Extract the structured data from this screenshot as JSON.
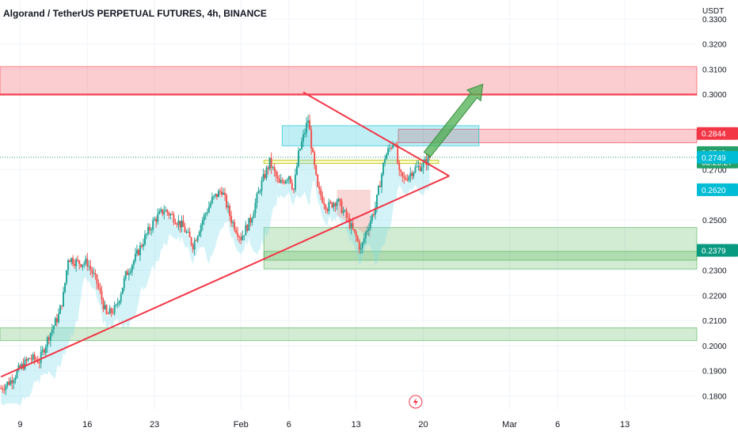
{
  "header": {
    "title": "Algorand / TetherUS PERPETUAL FUTURES, 4h, BINANCE"
  },
  "y_axis": {
    "currency": "USDT",
    "ticks": [
      "0.3300",
      "0.3200",
      "0.3100",
      "0.3000",
      "0.2700",
      "0.2500",
      "0.2300",
      "0.2200",
      "0.2100",
      "0.2000",
      "0.1900",
      "0.1800"
    ],
    "tick_values": [
      0.33,
      0.32,
      0.31,
      0.3,
      0.27,
      0.25,
      0.23,
      0.22,
      0.21,
      0.2,
      0.19,
      0.18
    ]
  },
  "x_axis": {
    "ticks": [
      "9",
      "16",
      "23",
      "Feb",
      "6",
      "13",
      "20",
      "Mar",
      "6",
      "13"
    ],
    "tick_days": [
      9,
      16,
      23,
      32,
      37,
      44,
      51,
      60,
      65,
      72
    ]
  },
  "price_labels": [
    {
      "text": "0.2844",
      "value": 0.2844,
      "color": "#f23645"
    },
    {
      "text": "0.2749",
      "value": 0.2749,
      "color": "#26a069",
      "sub": "03:25:27"
    },
    {
      "text": "0.2749",
      "value": 0.2749,
      "color": "#00bcd4"
    },
    {
      "text": "0.2620",
      "value": 0.262,
      "color": "#00bcd4"
    },
    {
      "text": "0.2379",
      "value": 0.2379,
      "color": "#089981"
    }
  ],
  "chart_data": {
    "type": "candlestick",
    "symbol": "Algorand / TetherUS PERPETUAL FUTURES",
    "timeframe": "4h",
    "exchange": "BINANCE",
    "ylim": [
      0.1745,
      0.3375
    ],
    "x_range_days": [
      6.9,
      79.5
    ],
    "last_price": 0.2749,
    "countdown": "03:25:27",
    "close_path": [
      [
        7,
        0.183
      ],
      [
        8,
        0.186
      ],
      [
        9,
        0.191
      ],
      [
        10,
        0.195
      ],
      [
        11,
        0.194
      ],
      [
        12,
        0.204
      ],
      [
        13,
        0.212
      ],
      [
        13.5,
        0.22
      ],
      [
        14,
        0.235
      ],
      [
        15,
        0.233
      ],
      [
        16,
        0.233
      ],
      [
        17,
        0.225
      ],
      [
        18,
        0.212
      ],
      [
        19,
        0.215
      ],
      [
        20,
        0.228
      ],
      [
        21,
        0.235
      ],
      [
        22,
        0.243
      ],
      [
        23,
        0.25
      ],
      [
        24,
        0.254
      ],
      [
        25,
        0.251
      ],
      [
        26,
        0.247
      ],
      [
        27,
        0.24
      ],
      [
        28,
        0.25
      ],
      [
        29,
        0.258
      ],
      [
        30,
        0.262
      ],
      [
        31,
        0.25
      ],
      [
        32,
        0.243
      ],
      [
        33,
        0.25
      ],
      [
        34,
        0.263
      ],
      [
        35,
        0.273
      ],
      [
        36,
        0.264
      ],
      [
        37,
        0.268
      ],
      [
        37.5,
        0.262
      ],
      [
        38,
        0.276
      ],
      [
        39,
        0.29
      ],
      [
        39.5,
        0.275
      ],
      [
        40,
        0.262
      ],
      [
        41,
        0.255
      ],
      [
        42,
        0.258
      ],
      [
        43,
        0.251
      ],
      [
        44,
        0.243
      ],
      [
        44.5,
        0.238
      ],
      [
        45,
        0.245
      ],
      [
        46,
        0.255
      ],
      [
        47,
        0.275
      ],
      [
        48,
        0.282
      ],
      [
        48.5,
        0.268
      ],
      [
        49,
        0.266
      ],
      [
        50,
        0.27
      ],
      [
        51,
        0.272
      ],
      [
        51.7,
        0.2749
      ]
    ],
    "trendlines": [
      {
        "name": "upper",
        "points": [
          [
            38.5,
            0.3008
          ],
          [
            53.7,
            0.2675
          ]
        ],
        "color": "#f23645"
      },
      {
        "name": "lower",
        "points": [
          [
            7,
            0.1876
          ],
          [
            53.7,
            0.2675
          ]
        ],
        "color": "#f23645"
      }
    ],
    "zones": [
      {
        "label": "resistance",
        "x": [
          6.9,
          79.5
        ],
        "y": [
          0.2996,
          0.311
        ],
        "color": "#f23645"
      },
      {
        "label": "resistance",
        "x": [
          48.4,
          79.5
        ],
        "y": [
          0.2807,
          0.2861
        ],
        "color": "#f23645"
      },
      {
        "label": "resistance",
        "x": [
          36.3,
          56.8
        ],
        "y": [
          0.2795,
          0.2875
        ],
        "color": "#00bcd4"
      },
      {
        "label": "support",
        "x": [
          34.4,
          79.5
        ],
        "y": [
          0.234,
          0.247
        ],
        "color": "#4caf50"
      },
      {
        "label": "support",
        "x": [
          34.4,
          79.5
        ],
        "y": [
          0.2305,
          0.2375
        ],
        "color": "#4caf50"
      },
      {
        "label": "support",
        "x": [
          6.9,
          79.5
        ],
        "y": [
          0.202,
          0.2071
        ],
        "color": "#4caf50"
      }
    ],
    "projection_arrow": {
      "from": [
        51.4,
        0.276
      ],
      "to": [
        57.2,
        0.304
      ],
      "color": "#4caf50"
    },
    "levels": [
      {
        "value": 0.3,
        "color": "#f23645"
      },
      {
        "value": 0.2749,
        "color": "#26a069",
        "style": "dotted"
      }
    ],
    "grid": true
  },
  "colors": {
    "up": "#26a69a",
    "down": "#ef5350",
    "accent_red": "#f23645",
    "accent_green": "#4caf50",
    "cloud": "#80deea"
  },
  "events": {
    "icon": "lightning-icon",
    "day": 50.2
  }
}
